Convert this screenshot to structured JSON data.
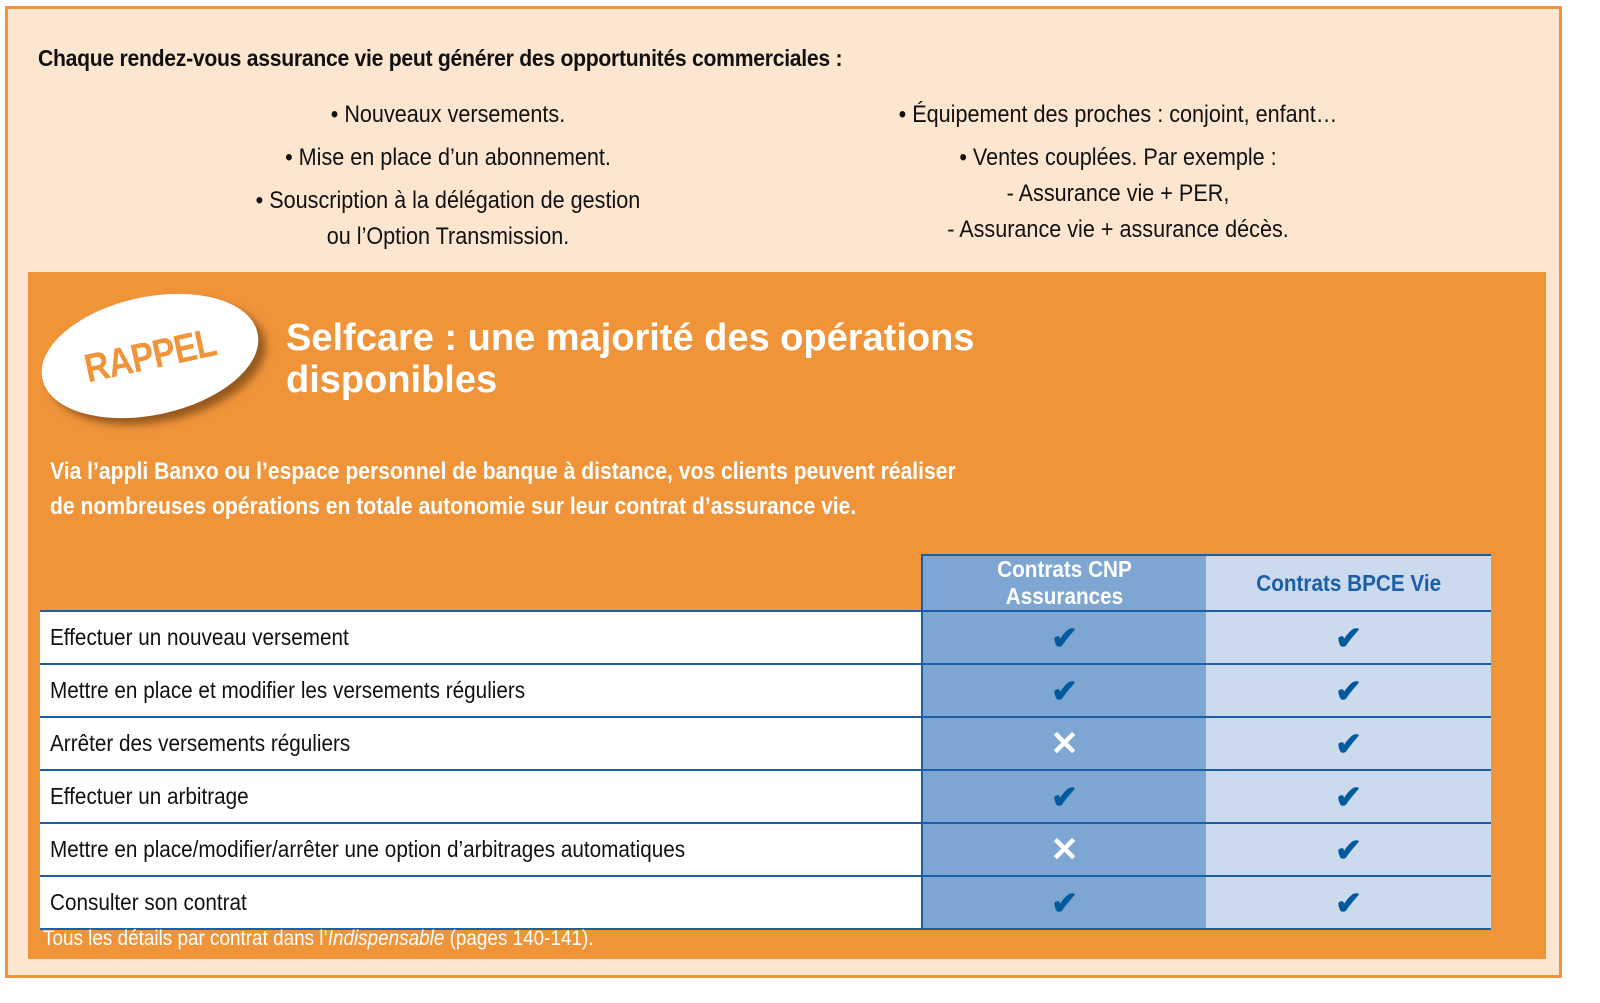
{
  "top": {
    "title": "Chaque rendez-vous assurance vie peut générer des opportunités commerciales :",
    "left": [
      "• Nouveaux versements.",
      "• Mise en place d’un abonnement.",
      "• Souscription à la délégation de gestion",
      "ou l’Option Transmission."
    ],
    "right": [
      "• Équipement des proches : conjoint, enfant…",
      "• Ventes couplées. Par exemple :",
      "- Assurance vie + PER,",
      "- Assurance vie + assurance décès."
    ]
  },
  "rappel": {
    "badge": "RAPPEL",
    "heading": "Selfcare : une majorité des opérations disponibles",
    "intro_1": "Via l’appli Banxo ou l’espace personnel de banque à distance, vos clients peuvent réaliser",
    "intro_2": "de nombreuses opérations en totale autonomie sur leur contrat d’assurance vie.",
    "footnote_pre": "Tous les détails par contrat dans l’",
    "footnote_em": "Indispensable",
    "footnote_post": " (pages 140-141)."
  },
  "table": {
    "headers": [
      "Contrats CNP Assurances",
      "Contrats BPCE Vie"
    ],
    "rows": [
      {
        "label": "Effectuer un nouveau versement",
        "cnp": "✔",
        "bpce": "✔"
      },
      {
        "label": "Mettre en place et modifier les versements réguliers",
        "cnp": "✔",
        "bpce": "✔"
      },
      {
        "label": "Arrêter des versements réguliers",
        "cnp": "✕",
        "bpce": "✔"
      },
      {
        "label": "Effectuer un arbitrage",
        "cnp": "✔",
        "bpce": "✔"
      },
      {
        "label": "Mettre en place/modifier/arrêter une option d’arbitrages automatiques",
        "cnp": "✕",
        "bpce": "✔"
      },
      {
        "label": "Consulter son contrat",
        "cnp": "✔",
        "bpce": "✔"
      }
    ]
  },
  "colors": {
    "orange": "#F0943A",
    "beige": "#FDE6D0",
    "blue_dark": "#7EA6D2",
    "blue_light": "#CCDAEE",
    "check": "#005A9E"
  }
}
